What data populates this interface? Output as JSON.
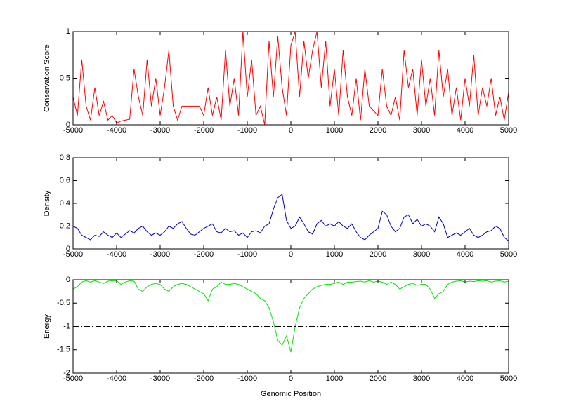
{
  "chart_data": [
    {
      "type": "line",
      "ylabel": "Conservation Score",
      "color": "#ff0000",
      "x": [
        -5000,
        -4900,
        -4800,
        -4700,
        -4600,
        -4500,
        -4400,
        -4300,
        -4200,
        -4100,
        -4000,
        -3900,
        -3800,
        -3700,
        -3600,
        -3500,
        -3400,
        -3300,
        -3200,
        -3100,
        -3000,
        -2900,
        -2800,
        -2700,
        -2600,
        -2500,
        -2400,
        -2300,
        -2200,
        -2100,
        -2000,
        -1900,
        -1800,
        -1700,
        -1600,
        -1500,
        -1400,
        -1300,
        -1200,
        -1100,
        -1000,
        -900,
        -800,
        -700,
        -600,
        -500,
        -400,
        -300,
        -200,
        -100,
        0,
        100,
        200,
        300,
        400,
        500,
        600,
        700,
        800,
        900,
        1000,
        1100,
        1200,
        1300,
        1400,
        1500,
        1600,
        1700,
        1800,
        1900,
        2000,
        2100,
        2200,
        2300,
        2400,
        2500,
        2600,
        2700,
        2800,
        2900,
        3000,
        3100,
        3200,
        3300,
        3400,
        3500,
        3600,
        3700,
        3800,
        3900,
        4000,
        4100,
        4200,
        4300,
        4400,
        4500,
        4600,
        4700,
        4800,
        4900,
        5000
      ],
      "values": [
        0.3,
        0.1,
        0.7,
        0.2,
        0.05,
        0.4,
        0.1,
        0.25,
        0.05,
        0.1,
        0.02,
        0.04,
        0.05,
        0.06,
        0.6,
        0.3,
        0.1,
        0.7,
        0.2,
        0.5,
        0.1,
        0.4,
        0.8,
        0.2,
        0.05,
        0.2,
        0.2,
        0.2,
        0.2,
        0.2,
        0.1,
        0.4,
        0.1,
        0.3,
        0.05,
        0.8,
        0.2,
        0.5,
        0.1,
        1,
        0.3,
        0.7,
        0.1,
        0.2,
        0,
        0.9,
        0.3,
        0.95,
        0.4,
        0.1,
        0.85,
        1,
        0.3,
        0.9,
        0.5,
        0.8,
        1,
        0.4,
        0.9,
        0.2,
        0.6,
        0.1,
        0.8,
        0.3,
        0.1,
        0.5,
        0.05,
        0.6,
        0.2,
        0.15,
        0.1,
        0.6,
        0.2,
        0.1,
        0.3,
        0.05,
        0.8,
        0.4,
        0.6,
        0.1,
        0.7,
        0.2,
        0.5,
        0.1,
        0.8,
        0.3,
        0.6,
        0.1,
        0.4,
        0.05,
        0.5,
        0.2,
        0.75,
        0.1,
        0.4,
        0.2,
        0.5,
        0.1,
        0.3,
        0.05,
        0.35
      ],
      "xlim": [
        -5000,
        5000
      ],
      "xticks": [
        -5000,
        -4000,
        -3000,
        -2000,
        -1000,
        0,
        1000,
        2000,
        3000,
        4000,
        5000
      ],
      "ylim": [
        0,
        1
      ],
      "yticks": [
        0,
        0.5,
        1
      ]
    },
    {
      "type": "line",
      "ylabel": "Density",
      "color": "#0000c8",
      "x": [
        -5000,
        -4900,
        -4800,
        -4700,
        -4600,
        -4500,
        -4400,
        -4300,
        -4200,
        -4100,
        -4000,
        -3900,
        -3800,
        -3700,
        -3600,
        -3500,
        -3400,
        -3300,
        -3200,
        -3100,
        -3000,
        -2900,
        -2800,
        -2700,
        -2600,
        -2500,
        -2400,
        -2300,
        -2200,
        -2100,
        -2000,
        -1900,
        -1800,
        -1700,
        -1600,
        -1500,
        -1400,
        -1300,
        -1200,
        -1100,
        -1000,
        -900,
        -800,
        -700,
        -600,
        -500,
        -400,
        -300,
        -200,
        -100,
        0,
        100,
        200,
        300,
        400,
        500,
        600,
        700,
        800,
        900,
        1000,
        1100,
        1200,
        1300,
        1400,
        1500,
        1600,
        1700,
        1800,
        1900,
        2000,
        2100,
        2200,
        2300,
        2400,
        2500,
        2600,
        2700,
        2800,
        2900,
        3000,
        3100,
        3200,
        3300,
        3400,
        3500,
        3600,
        3700,
        3800,
        3900,
        4000,
        4100,
        4200,
        4300,
        4400,
        4500,
        4600,
        4700,
        4800,
        4900,
        5000
      ],
      "values": [
        0.2,
        0.18,
        0.12,
        0.1,
        0.08,
        0.12,
        0.11,
        0.15,
        0.12,
        0.1,
        0.14,
        0.1,
        0.13,
        0.16,
        0.14,
        0.18,
        0.2,
        0.15,
        0.12,
        0.14,
        0.12,
        0.15,
        0.2,
        0.18,
        0.22,
        0.24,
        0.18,
        0.13,
        0.12,
        0.15,
        0.18,
        0.2,
        0.22,
        0.15,
        0.14,
        0.18,
        0.15,
        0.16,
        0.12,
        0.14,
        0.1,
        0.15,
        0.16,
        0.14,
        0.2,
        0.22,
        0.35,
        0.45,
        0.48,
        0.25,
        0.18,
        0.2,
        0.28,
        0.22,
        0.15,
        0.13,
        0.22,
        0.25,
        0.2,
        0.22,
        0.2,
        0.24,
        0.2,
        0.18,
        0.22,
        0.15,
        0.1,
        0.08,
        0.12,
        0.15,
        0.18,
        0.33,
        0.3,
        0.2,
        0.15,
        0.18,
        0.28,
        0.3,
        0.22,
        0.26,
        0.2,
        0.22,
        0.2,
        0.15,
        0.28,
        0.22,
        0.1,
        0.12,
        0.14,
        0.12,
        0.15,
        0.18,
        0.12,
        0.1,
        0.12,
        0.15,
        0.16,
        0.2,
        0.18,
        0.1,
        0.07
      ],
      "xlim": [
        -5000,
        5000
      ],
      "xticks": [
        -5000,
        -4000,
        -3000,
        -2000,
        -1000,
        0,
        1000,
        2000,
        3000,
        4000,
        5000
      ],
      "ylim": [
        0,
        0.8
      ],
      "yticks": [
        0,
        0.2,
        0.4,
        0.6,
        0.8
      ]
    },
    {
      "type": "line",
      "ylabel": "Energy",
      "xlabel": "Genomic Position",
      "color": "#00e600",
      "hline": -1,
      "x": [
        -5000,
        -4900,
        -4800,
        -4700,
        -4600,
        -4500,
        -4400,
        -4300,
        -4200,
        -4100,
        -4000,
        -3900,
        -3800,
        -3700,
        -3600,
        -3500,
        -3400,
        -3300,
        -3200,
        -3100,
        -3000,
        -2900,
        -2800,
        -2700,
        -2600,
        -2500,
        -2400,
        -2300,
        -2200,
        -2100,
        -2000,
        -1900,
        -1800,
        -1700,
        -1600,
        -1500,
        -1400,
        -1300,
        -1200,
        -1100,
        -1000,
        -900,
        -800,
        -700,
        -600,
        -500,
        -400,
        -300,
        -200,
        -100,
        0,
        100,
        200,
        300,
        400,
        500,
        600,
        700,
        800,
        900,
        1000,
        1100,
        1200,
        1300,
        1400,
        1500,
        1600,
        1700,
        1800,
        1900,
        2000,
        2100,
        2200,
        2300,
        2400,
        2500,
        2600,
        2700,
        2800,
        2900,
        3000,
        3100,
        3200,
        3300,
        3400,
        3500,
        3600,
        3700,
        3800,
        3900,
        4000,
        4100,
        4200,
        4300,
        4400,
        4500,
        4600,
        4700,
        4800,
        4900,
        5000
      ],
      "values": [
        -0.2,
        -0.15,
        -0.05,
        -0.02,
        -0.05,
        -0.02,
        -0.05,
        -0.08,
        -0.03,
        -0.02,
        -0.02,
        -0.1,
        -0.05,
        -0.02,
        -0.03,
        -0.2,
        -0.25,
        -0.15,
        -0.1,
        -0.08,
        -0.1,
        -0.2,
        -0.25,
        -0.15,
        -0.1,
        -0.08,
        -0.1,
        -0.15,
        -0.2,
        -0.25,
        -0.3,
        -0.45,
        -0.2,
        -0.15,
        -0.05,
        -0.1,
        -0.1,
        -0.08,
        -0.1,
        -0.15,
        -0.2,
        -0.25,
        -0.3,
        -0.4,
        -0.45,
        -0.6,
        -0.9,
        -1.3,
        -1.4,
        -1.2,
        -1.55,
        -1,
        -0.6,
        -0.4,
        -0.3,
        -0.2,
        -0.15,
        -0.12,
        -0.1,
        -0.1,
        -0.08,
        -0.05,
        -0.1,
        -0.05,
        -0.05,
        -0.04,
        -0.03,
        -0.05,
        -0.02,
        -0.05,
        -0.03,
        -0.05,
        -0.1,
        -0.05,
        -0.1,
        -0.2,
        -0.15,
        -0.1,
        -0.08,
        -0.12,
        -0.1,
        -0.1,
        -0.2,
        -0.4,
        -0.3,
        -0.25,
        -0.1,
        -0.05,
        -0.03,
        -0.02,
        -0.05,
        -0.03,
        -0.04,
        -0.02,
        -0.03,
        -0.02,
        -0.05,
        -0.03,
        -0.02,
        -0.05,
        -0.03
      ],
      "xlim": [
        -5000,
        5000
      ],
      "xticks": [
        -5000,
        -4000,
        -3000,
        -2000,
        -1000,
        0,
        1000,
        2000,
        3000,
        4000,
        5000
      ],
      "ylim": [
        -2,
        0
      ],
      "yticks": [
        -2,
        -1.5,
        -1,
        -0.5,
        0
      ]
    }
  ]
}
